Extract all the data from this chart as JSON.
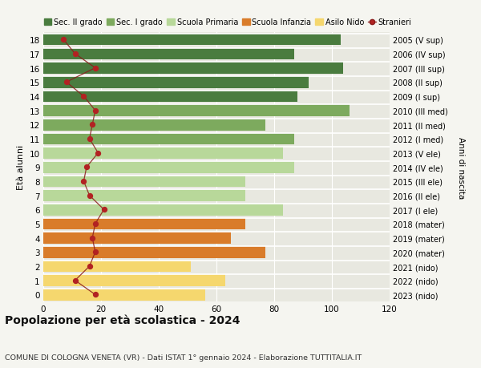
{
  "ages": [
    18,
    17,
    16,
    15,
    14,
    13,
    12,
    11,
    10,
    9,
    8,
    7,
    6,
    5,
    4,
    3,
    2,
    1,
    0
  ],
  "bar_values": [
    103,
    87,
    104,
    92,
    88,
    106,
    77,
    87,
    83,
    87,
    70,
    70,
    83,
    70,
    65,
    77,
    51,
    63,
    56
  ],
  "bar_colors": [
    "#4a7c3f",
    "#4a7c3f",
    "#4a7c3f",
    "#4a7c3f",
    "#4a7c3f",
    "#7daa5e",
    "#7daa5e",
    "#7daa5e",
    "#b8d89a",
    "#b8d89a",
    "#b8d89a",
    "#b8d89a",
    "#b8d89a",
    "#d97c2a",
    "#d97c2a",
    "#d97c2a",
    "#f5d76e",
    "#f5d76e",
    "#f5d76e"
  ],
  "stranieri_values": [
    7,
    11,
    18,
    8,
    14,
    18,
    17,
    16,
    19,
    15,
    14,
    16,
    21,
    18,
    17,
    18,
    16,
    11,
    18
  ],
  "right_labels": [
    "2005 (V sup)",
    "2006 (IV sup)",
    "2007 (III sup)",
    "2008 (II sup)",
    "2009 (I sup)",
    "2010 (III med)",
    "2011 (II med)",
    "2012 (I med)",
    "2013 (V ele)",
    "2014 (IV ele)",
    "2015 (III ele)",
    "2016 (II ele)",
    "2017 (I ele)",
    "2018 (mater)",
    "2019 (mater)",
    "2020 (mater)",
    "2021 (nido)",
    "2022 (nido)",
    "2023 (nido)"
  ],
  "legend_labels": [
    "Sec. II grado",
    "Sec. I grado",
    "Scuola Primaria",
    "Scuola Infanzia",
    "Asilo Nido",
    "Stranieri"
  ],
  "legend_colors": [
    "#4a7c3f",
    "#7daa5e",
    "#b8d89a",
    "#d97c2a",
    "#f5d76e",
    "#b22222"
  ],
  "ylabel": "Età alunni",
  "right_ylabel": "Anni di nascita",
  "title": "Popolazione per età scolastica - 2024",
  "subtitle": "COMUNE DI COLOGNA VENETA (VR) - Dati ISTAT 1° gennaio 2024 - Elaborazione TUTTITALIA.IT",
  "xlim": [
    0,
    120
  ],
  "xticks": [
    0,
    20,
    40,
    60,
    80,
    100,
    120
  ],
  "background_color": "#f5f5f0",
  "plot_bg_color": "#e8e8e0"
}
